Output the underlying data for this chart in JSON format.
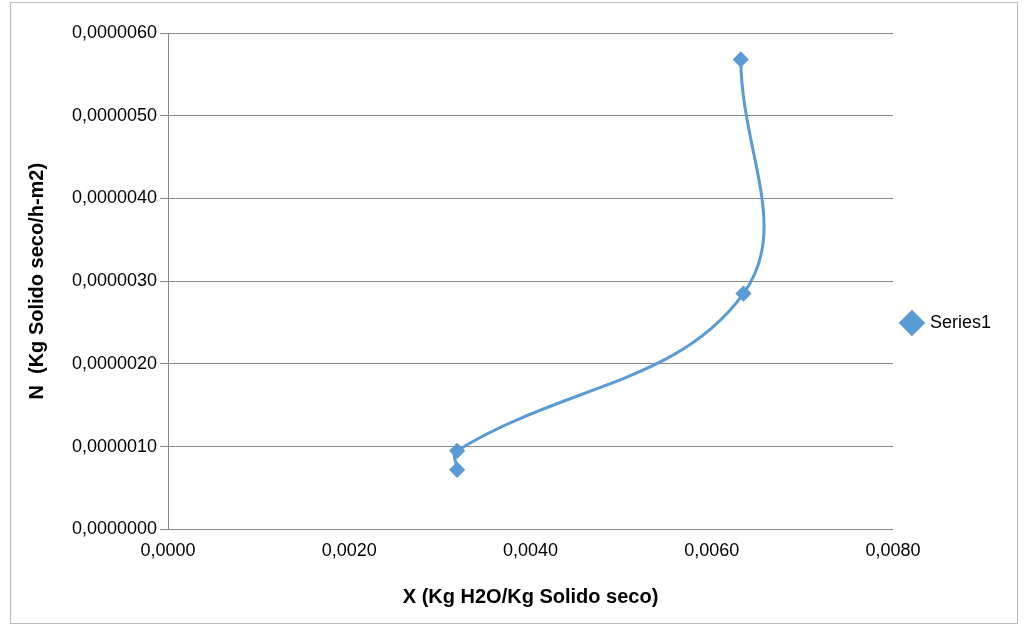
{
  "chart_data": {
    "type": "line",
    "xlabel": "X (Kg H2O/Kg Solido seco)",
    "ylabel": "N  (Kg Solido seco/h-m2)",
    "series": [
      {
        "name": "Series1",
        "color": "#5b9bd5",
        "x": [
          0.00632,
          0.00635,
          0.00319,
          0.00319
        ],
        "values": [
          5.68e-06,
          2.85e-06,
          9.5e-07,
          7.2e-07
        ]
      }
    ],
    "xlim": [
      0,
      0.008
    ],
    "xticks": [
      {
        "value": 0,
        "label": "0,0000"
      },
      {
        "value": 0.002,
        "label": "0,0020"
      },
      {
        "value": 0.004,
        "label": "0,0040"
      },
      {
        "value": 0.006,
        "label": "0,0060"
      },
      {
        "value": 0.008,
        "label": "0,0080"
      }
    ],
    "ylim": [
      0,
      6e-06
    ],
    "yticks": [
      {
        "value": 0,
        "label": "0,0000000"
      },
      {
        "value": 1e-06,
        "label": "0,0000010"
      },
      {
        "value": 2e-06,
        "label": "0,0000020"
      },
      {
        "value": 3e-06,
        "label": "0,0000030"
      },
      {
        "value": 4e-06,
        "label": "0,0000040"
      },
      {
        "value": 5e-06,
        "label": "0,0000050"
      },
      {
        "value": 6e-06,
        "label": "0,0000060"
      }
    ],
    "grid": "y",
    "legend": "right",
    "marker": "diamond",
    "line_style": "solid"
  }
}
